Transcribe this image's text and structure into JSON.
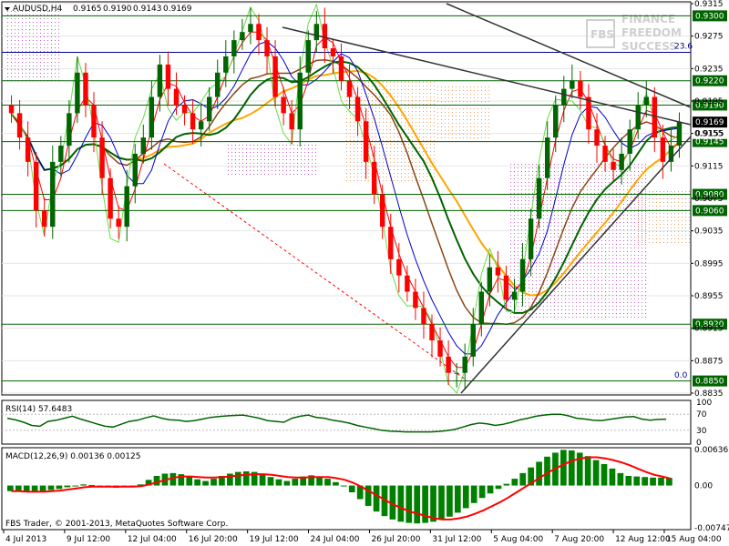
{
  "chart_data": [
    {
      "type": "candlestick",
      "symbol_header": "AUDUSD,H4",
      "ohlc_header": [
        "0.9165",
        "0.9190",
        "0.9143",
        "0.9169"
      ],
      "watermark": {
        "line1": "FINANCE",
        "line2": "FREEDOM",
        "line3": "SUCCESS",
        "logo": "FBS"
      },
      "ylim": [
        0.8835,
        0.9315
      ],
      "price_ticks": [
        "0.9315",
        "0.9275",
        "0.9235",
        "0.9195",
        "0.9155",
        "0.9115",
        "0.9075",
        "0.9035",
        "0.8995",
        "0.8955",
        "0.8915",
        "0.8875",
        "0.8835"
      ],
      "levels": [
        {
          "value": 0.93,
          "label": "0.9300",
          "color": "#006400"
        },
        {
          "value": 0.9255,
          "label": "",
          "color": "#00008b"
        },
        {
          "value": 0.922,
          "label": "0.9220",
          "color": "#006400"
        },
        {
          "value": 0.919,
          "label": "0.9190",
          "color": "#006400"
        },
        {
          "value": 0.9145,
          "label": "0.9145",
          "color": "#006400"
        },
        {
          "value": 0.908,
          "label": "0.9080",
          "color": "#006400"
        },
        {
          "value": 0.906,
          "label": "0.9060",
          "color": "#006400"
        },
        {
          "value": 0.892,
          "label": "0.8920",
          "color": "#006400"
        },
        {
          "value": 0.885,
          "label": "0.8850",
          "color": "#006400"
        }
      ],
      "current_price": {
        "value": 0.9169,
        "label": "0.9169"
      },
      "price_label_extra": {
        "value": 0.9155,
        "label": "0.9155"
      },
      "fib_labels": [
        {
          "value": 0.9257,
          "label": "23.6"
        },
        {
          "value": 0.8852,
          "label": "0.0"
        }
      ],
      "closes": [
        0.918,
        0.915,
        0.912,
        0.906,
        0.904,
        0.912,
        0.914,
        0.918,
        0.923,
        0.919,
        0.915,
        0.91,
        0.905,
        0.904,
        0.909,
        0.913,
        0.915,
        0.92,
        0.924,
        0.921,
        0.919,
        0.918,
        0.916,
        0.917,
        0.92,
        0.923,
        0.925,
        0.927,
        0.928,
        0.929,
        0.927,
        0.925,
        0.92,
        0.918,
        0.916,
        0.923,
        0.927,
        0.929,
        0.926,
        0.925,
        0.922,
        0.92,
        0.917,
        0.912,
        0.908,
        0.904,
        0.9,
        0.898,
        0.896,
        0.894,
        0.892,
        0.89,
        0.888,
        0.886,
        0.886,
        0.888,
        0.892,
        0.896,
        0.899,
        0.898,
        0.895,
        0.896,
        0.9,
        0.905,
        0.91,
        0.915,
        0.919,
        0.921,
        0.922,
        0.92,
        0.916,
        0.914,
        0.912,
        0.911,
        0.913,
        0.916,
        0.919,
        0.92,
        0.915,
        0.912,
        0.914,
        0.9169
      ]
    },
    {
      "type": "line",
      "title": "RSI(14) 57.6483",
      "ylim": [
        0,
        100
      ],
      "ticks": [
        "100",
        "70",
        "30",
        "0"
      ],
      "values": [
        60,
        56,
        50,
        42,
        40,
        52,
        55,
        60,
        65,
        58,
        52,
        46,
        40,
        38,
        45,
        52,
        55,
        61,
        66,
        60,
        56,
        55,
        52,
        54,
        58,
        62,
        64,
        66,
        67,
        68,
        64,
        60,
        54,
        52,
        50,
        60,
        65,
        68,
        62,
        60,
        55,
        52,
        48,
        42,
        38,
        34,
        30,
        28,
        27,
        26,
        26,
        26,
        26,
        27,
        29,
        32,
        38,
        44,
        48,
        46,
        42,
        45,
        50,
        56,
        60,
        65,
        68,
        70,
        70,
        66,
        60,
        58,
        55,
        54,
        57,
        60,
        63,
        64,
        58,
        55,
        57,
        57.65
      ]
    },
    {
      "type": "bar",
      "title": "MACD(12,26,9) 0.00136 0.00125",
      "ylim": [
        -0.00747,
        0.00636
      ],
      "ticks": [
        "0.00636",
        "0.00",
        "-0.00747"
      ],
      "histogram": [
        -0.001,
        -0.0011,
        -0.0012,
        -0.0012,
        -0.001,
        -0.0008,
        -0.0006,
        -0.0003,
        0.0,
        0.0002,
        0.0001,
        -0.0001,
        -0.0003,
        -0.0004,
        -0.0003,
        -0.0001,
        0.0002,
        0.001,
        0.0017,
        0.0021,
        0.0022,
        0.002,
        0.0016,
        0.0011,
        0.0008,
        0.0012,
        0.0017,
        0.0021,
        0.0024,
        0.0025,
        0.0024,
        0.002,
        0.0015,
        0.0011,
        0.0008,
        0.0012,
        0.0016,
        0.0018,
        0.0016,
        0.0012,
        0.0006,
        -0.0001,
        -0.0012,
        -0.0024,
        -0.0036,
        -0.0046,
        -0.0054,
        -0.006,
        -0.0064,
        -0.0066,
        -0.0067,
        -0.0066,
        -0.0064,
        -0.006,
        -0.0055,
        -0.0048,
        -0.004,
        -0.0031,
        -0.0022,
        -0.0014,
        -0.0006,
        0.0003,
        0.0012,
        0.0022,
        0.0032,
        0.0042,
        0.0051,
        0.0058,
        0.0063,
        0.0062,
        0.0058,
        0.0052,
        0.0045,
        0.0038,
        0.003,
        0.0022,
        0.0017,
        0.0016,
        0.0015,
        0.0014,
        0.0014,
        0.00136
      ],
      "signal": [
        -0.001,
        -0.001,
        -0.0011,
        -0.0011,
        -0.0011,
        -0.001,
        -0.0009,
        -0.0007,
        -0.0005,
        -0.0003,
        -0.0002,
        -0.0002,
        -0.0002,
        -0.0002,
        -0.0002,
        -0.0002,
        -0.0001,
        0.0002,
        0.0006,
        0.001,
        0.0014,
        0.0016,
        0.0016,
        0.0015,
        0.0014,
        0.0014,
        0.0015,
        0.0016,
        0.0018,
        0.0019,
        0.002,
        0.002,
        0.0019,
        0.0017,
        0.0015,
        0.0014,
        0.0014,
        0.0015,
        0.0015,
        0.0015,
        0.0013,
        0.001,
        0.0005,
        -0.0002,
        -0.001,
        -0.0018,
        -0.0026,
        -0.0034,
        -0.004,
        -0.0046,
        -0.005,
        -0.0054,
        -0.0058,
        -0.006,
        -0.006,
        -0.0058,
        -0.0055,
        -0.005,
        -0.0044,
        -0.0037,
        -0.003,
        -0.0022,
        -0.0013,
        -0.0004,
        0.0005,
        0.0014,
        0.0023,
        0.0031,
        0.0038,
        0.0044,
        0.0048,
        0.005,
        0.005,
        0.0048,
        0.0045,
        0.0041,
        0.0036,
        0.003,
        0.0024,
        0.0019,
        0.0016,
        0.00125
      ]
    }
  ],
  "date_labels": [
    "4 Jul 2013",
    "9 Jul 12:00",
    "12 Jul 04:00",
    "16 Jul 20:00",
    "19 Jul 12:00",
    "24 Jul 04:00",
    "26 Jul 20:00",
    "31 Jul 12:00",
    "5 Aug 04:00",
    "7 Aug 20:00",
    "12 Aug 12:00",
    "15 Aug 04:00"
  ],
  "copyright": "FBS Trader, © 2001-2013, MetaQuotes Software Corp.",
  "colors": {
    "bull": "#006400",
    "bear": "#ff0000",
    "rsi": "#006400",
    "macd_hist": "#008000",
    "macd_signal": "#ff0000",
    "level": "#006400",
    "label_bg": "#006400"
  }
}
